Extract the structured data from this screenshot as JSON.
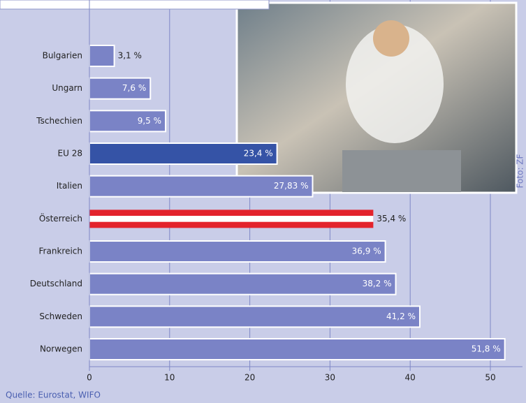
{
  "chart_data": {
    "type": "bar",
    "orientation": "horizontal",
    "categories": [
      "Bulgarien",
      "Ungarn",
      "Tschechien",
      "EU 28",
      "Italien",
      "Österreich",
      "Frankreich",
      "Deutschland",
      "Schweden",
      "Norwegen"
    ],
    "values": [
      3.1,
      7.6,
      9.5,
      23.4,
      27.83,
      35.4,
      36.9,
      38.2,
      41.2,
      51.8
    ],
    "value_labels": [
      "3,1 %",
      "7,6 %",
      "9,5 %",
      "23,4 %",
      "27,83 %",
      "35,4 %",
      "36,9 %",
      "38,2 %",
      "41,2 %",
      "51,8 %"
    ],
    "colors": [
      "#7a83c6",
      "#7a83c6",
      "#7a83c6",
      "#3553a6",
      "#7a83c6",
      "#e3232c",
      "#7a83c6",
      "#7a83c6",
      "#7a83c6",
      "#7a83c6"
    ],
    "xlim": [
      0,
      54
    ],
    "xticks": [
      0,
      10,
      20,
      30,
      40,
      50
    ],
    "grid": true,
    "source": "Quelle: Eurostat, WIFO",
    "credit": "Foto: ZF"
  }
}
